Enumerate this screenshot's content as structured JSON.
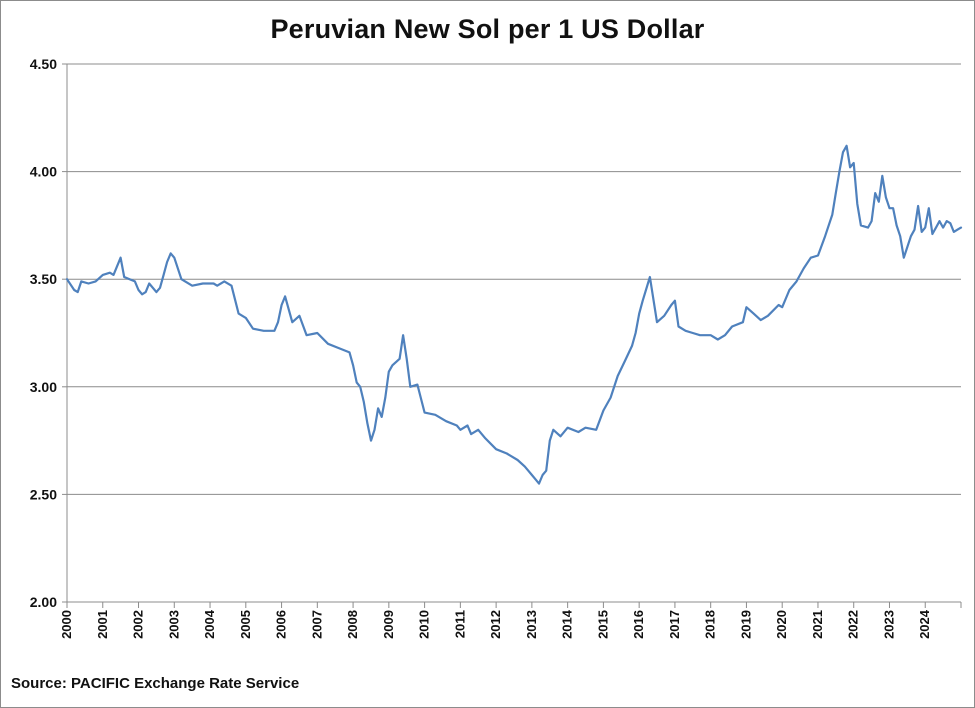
{
  "chart_data": {
    "type": "line",
    "title": "Peruvian New Sol per 1 US Dollar",
    "source": "Source: PACIFIC Exchange Rate Service",
    "ylim": [
      2.0,
      4.5
    ],
    "yticks": [
      "4.50",
      "4.00",
      "3.50",
      "3.00",
      "2.50",
      "2.00"
    ],
    "xlim": [
      2000,
      2025
    ],
    "xticks": [
      "2000",
      "2001",
      "2002",
      "2003",
      "2004",
      "2005",
      "2006",
      "2007",
      "2008",
      "2009",
      "2010",
      "2011",
      "2012",
      "2013",
      "2014",
      "2015",
      "2016",
      "2017",
      "2018",
      "2019",
      "2020",
      "2021",
      "2022",
      "2023",
      "2024"
    ],
    "grid": "horizontal",
    "line_color": "#4f81bd",
    "series": [
      {
        "x": [
          2000.0,
          2000.2,
          2000.3,
          2000.4,
          2000.6,
          2000.8,
          2001.0,
          2001.2,
          2001.3,
          2001.5,
          2001.6,
          2001.9,
          2002.0,
          2002.1,
          2002.2,
          2002.3,
          2002.5,
          2002.6,
          2002.7,
          2002.8,
          2002.9,
          2003.0,
          2003.2,
          2003.5,
          2003.8,
          2004.1,
          2004.2,
          2004.4,
          2004.6,
          2004.8,
          2005.0,
          2005.2,
          2005.5,
          2005.8,
          2005.9,
          2006.0,
          2006.1,
          2006.3,
          2006.5,
          2006.7,
          2007.0,
          2007.3,
          2007.6,
          2007.9,
          2008.0,
          2008.1,
          2008.2,
          2008.3,
          2008.4,
          2008.5,
          2008.6,
          2008.7,
          2008.8,
          2008.9,
          2009.0,
          2009.1,
          2009.3,
          2009.4,
          2009.5,
          2009.6,
          2009.8,
          2010.0,
          2010.3,
          2010.6,
          2010.9,
          2011.0,
          2011.2,
          2011.3,
          2011.5,
          2011.7,
          2012.0,
          2012.3,
          2012.6,
          2012.8,
          2012.9,
          2013.0,
          2013.1,
          2013.2,
          2013.3,
          2013.4,
          2013.5,
          2013.6,
          2013.8,
          2014.0,
          2014.3,
          2014.5,
          2014.8,
          2015.0,
          2015.2,
          2015.4,
          2015.6,
          2015.8,
          2015.9,
          2016.0,
          2016.1,
          2016.3,
          2016.5,
          2016.7,
          2016.9,
          2017.0,
          2017.1,
          2017.3,
          2017.5,
          2017.7,
          2018.0,
          2018.2,
          2018.4,
          2018.6,
          2018.9,
          2019.0,
          2019.2,
          2019.4,
          2019.6,
          2019.9,
          2020.0,
          2020.2,
          2020.4,
          2020.6,
          2020.8,
          2021.0,
          2021.2,
          2021.4,
          2021.5,
          2021.6,
          2021.7,
          2021.8,
          2021.9,
          2022.0,
          2022.1,
          2022.2,
          2022.4,
          2022.5,
          2022.6,
          2022.7,
          2022.8,
          2022.9,
          2023.0,
          2023.1,
          2023.2,
          2023.3,
          2023.4,
          2023.6,
          2023.7,
          2023.8,
          2023.9,
          2024.0,
          2024.1,
          2024.2,
          2024.3,
          2024.4,
          2024.5,
          2024.6,
          2024.7,
          2024.8,
          2024.9,
          2025.0
        ],
        "y": [
          3.5,
          3.45,
          3.44,
          3.49,
          3.48,
          3.49,
          3.52,
          3.53,
          3.52,
          3.6,
          3.51,
          3.49,
          3.45,
          3.43,
          3.44,
          3.48,
          3.44,
          3.46,
          3.52,
          3.58,
          3.62,
          3.6,
          3.5,
          3.47,
          3.48,
          3.48,
          3.47,
          3.49,
          3.47,
          3.34,
          3.32,
          3.27,
          3.26,
          3.26,
          3.3,
          3.38,
          3.42,
          3.3,
          3.33,
          3.24,
          3.25,
          3.2,
          3.18,
          3.16,
          3.1,
          3.02,
          3.0,
          2.93,
          2.83,
          2.75,
          2.8,
          2.9,
          2.86,
          2.95,
          3.07,
          3.1,
          3.13,
          3.24,
          3.13,
          3.0,
          3.01,
          2.88,
          2.87,
          2.84,
          2.82,
          2.8,
          2.82,
          2.78,
          2.8,
          2.76,
          2.71,
          2.69,
          2.66,
          2.63,
          2.61,
          2.59,
          2.57,
          2.55,
          2.59,
          2.61,
          2.75,
          2.8,
          2.77,
          2.81,
          2.79,
          2.81,
          2.8,
          2.89,
          2.95,
          3.05,
          3.12,
          3.19,
          3.25,
          3.34,
          3.4,
          3.51,
          3.3,
          3.33,
          3.38,
          3.4,
          3.28,
          3.26,
          3.25,
          3.24,
          3.24,
          3.22,
          3.24,
          3.28,
          3.3,
          3.37,
          3.34,
          3.31,
          3.33,
          3.38,
          3.37,
          3.45,
          3.49,
          3.55,
          3.6,
          3.61,
          3.7,
          3.8,
          3.9,
          4.0,
          4.09,
          4.12,
          4.02,
          4.04,
          3.85,
          3.75,
          3.74,
          3.77,
          3.9,
          3.86,
          3.98,
          3.88,
          3.83,
          3.83,
          3.75,
          3.7,
          3.6,
          3.7,
          3.73,
          3.84,
          3.72,
          3.74,
          3.83,
          3.71,
          3.74,
          3.77,
          3.74,
          3.77,
          3.76,
          3.72,
          3.73,
          3.74
        ]
      }
    ]
  }
}
